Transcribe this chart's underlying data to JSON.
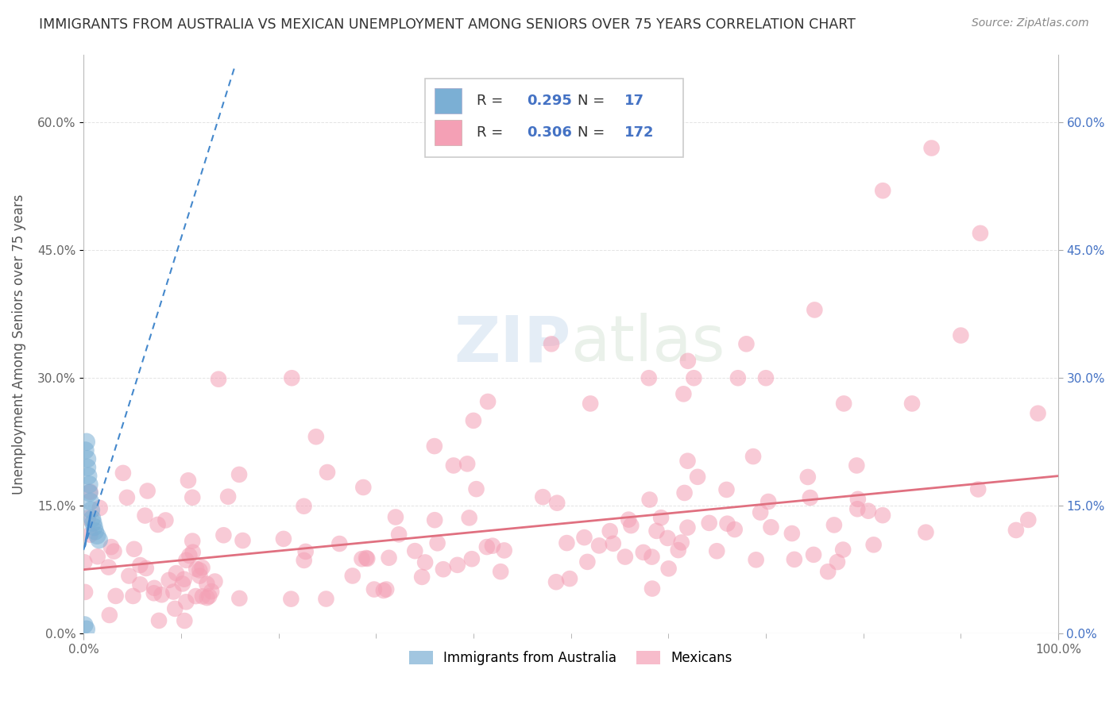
{
  "title": "IMMIGRANTS FROM AUSTRALIA VS MEXICAN UNEMPLOYMENT AMONG SENIORS OVER 75 YEARS CORRELATION CHART",
  "source": "Source: ZipAtlas.com",
  "ylabel": "Unemployment Among Seniors over 75 years",
  "xlim": [
    0.0,
    1.0
  ],
  "ylim": [
    0.0,
    0.68
  ],
  "yticks": [
    0.0,
    0.15,
    0.3,
    0.45,
    0.6
  ],
  "ytick_labels": [
    "0.0%",
    "15.0%",
    "30.0%",
    "45.0%",
    "60.0%"
  ],
  "xtick_labels": [
    "0.0%",
    "100.0%"
  ],
  "legend_blue_label": "Immigrants from Australia",
  "legend_pink_label": "Mexicans",
  "watermark": "ZIPatlas",
  "blue_R": "0.295",
  "blue_N": "17",
  "pink_R": "0.306",
  "pink_N": "172",
  "blue_trend_x": [
    0.0,
    0.155
  ],
  "blue_trend_y": [
    0.098,
    0.665
  ],
  "pink_trend_x": [
    0.0,
    1.0
  ],
  "pink_trend_y": [
    0.075,
    0.185
  ],
  "background_color": "#ffffff",
  "grid_color": "#dddddd",
  "title_color": "#333333",
  "source_color": "#888888",
  "blue_color": "#7bafd4",
  "pink_color": "#f4a0b5",
  "trend_blue_color": "#4488cc",
  "trend_pink_color": "#e07080",
  "blue_scatter_x": [
    0.002,
    0.003,
    0.004,
    0.004,
    0.005,
    0.006,
    0.006,
    0.007,
    0.008,
    0.009,
    0.01,
    0.011,
    0.012,
    0.014,
    0.016,
    0.001,
    0.003
  ],
  "blue_scatter_y": [
    0.215,
    0.225,
    0.205,
    0.195,
    0.185,
    0.175,
    0.165,
    0.155,
    0.145,
    0.135,
    0.13,
    0.125,
    0.12,
    0.115,
    0.11,
    0.01,
    0.005
  ]
}
